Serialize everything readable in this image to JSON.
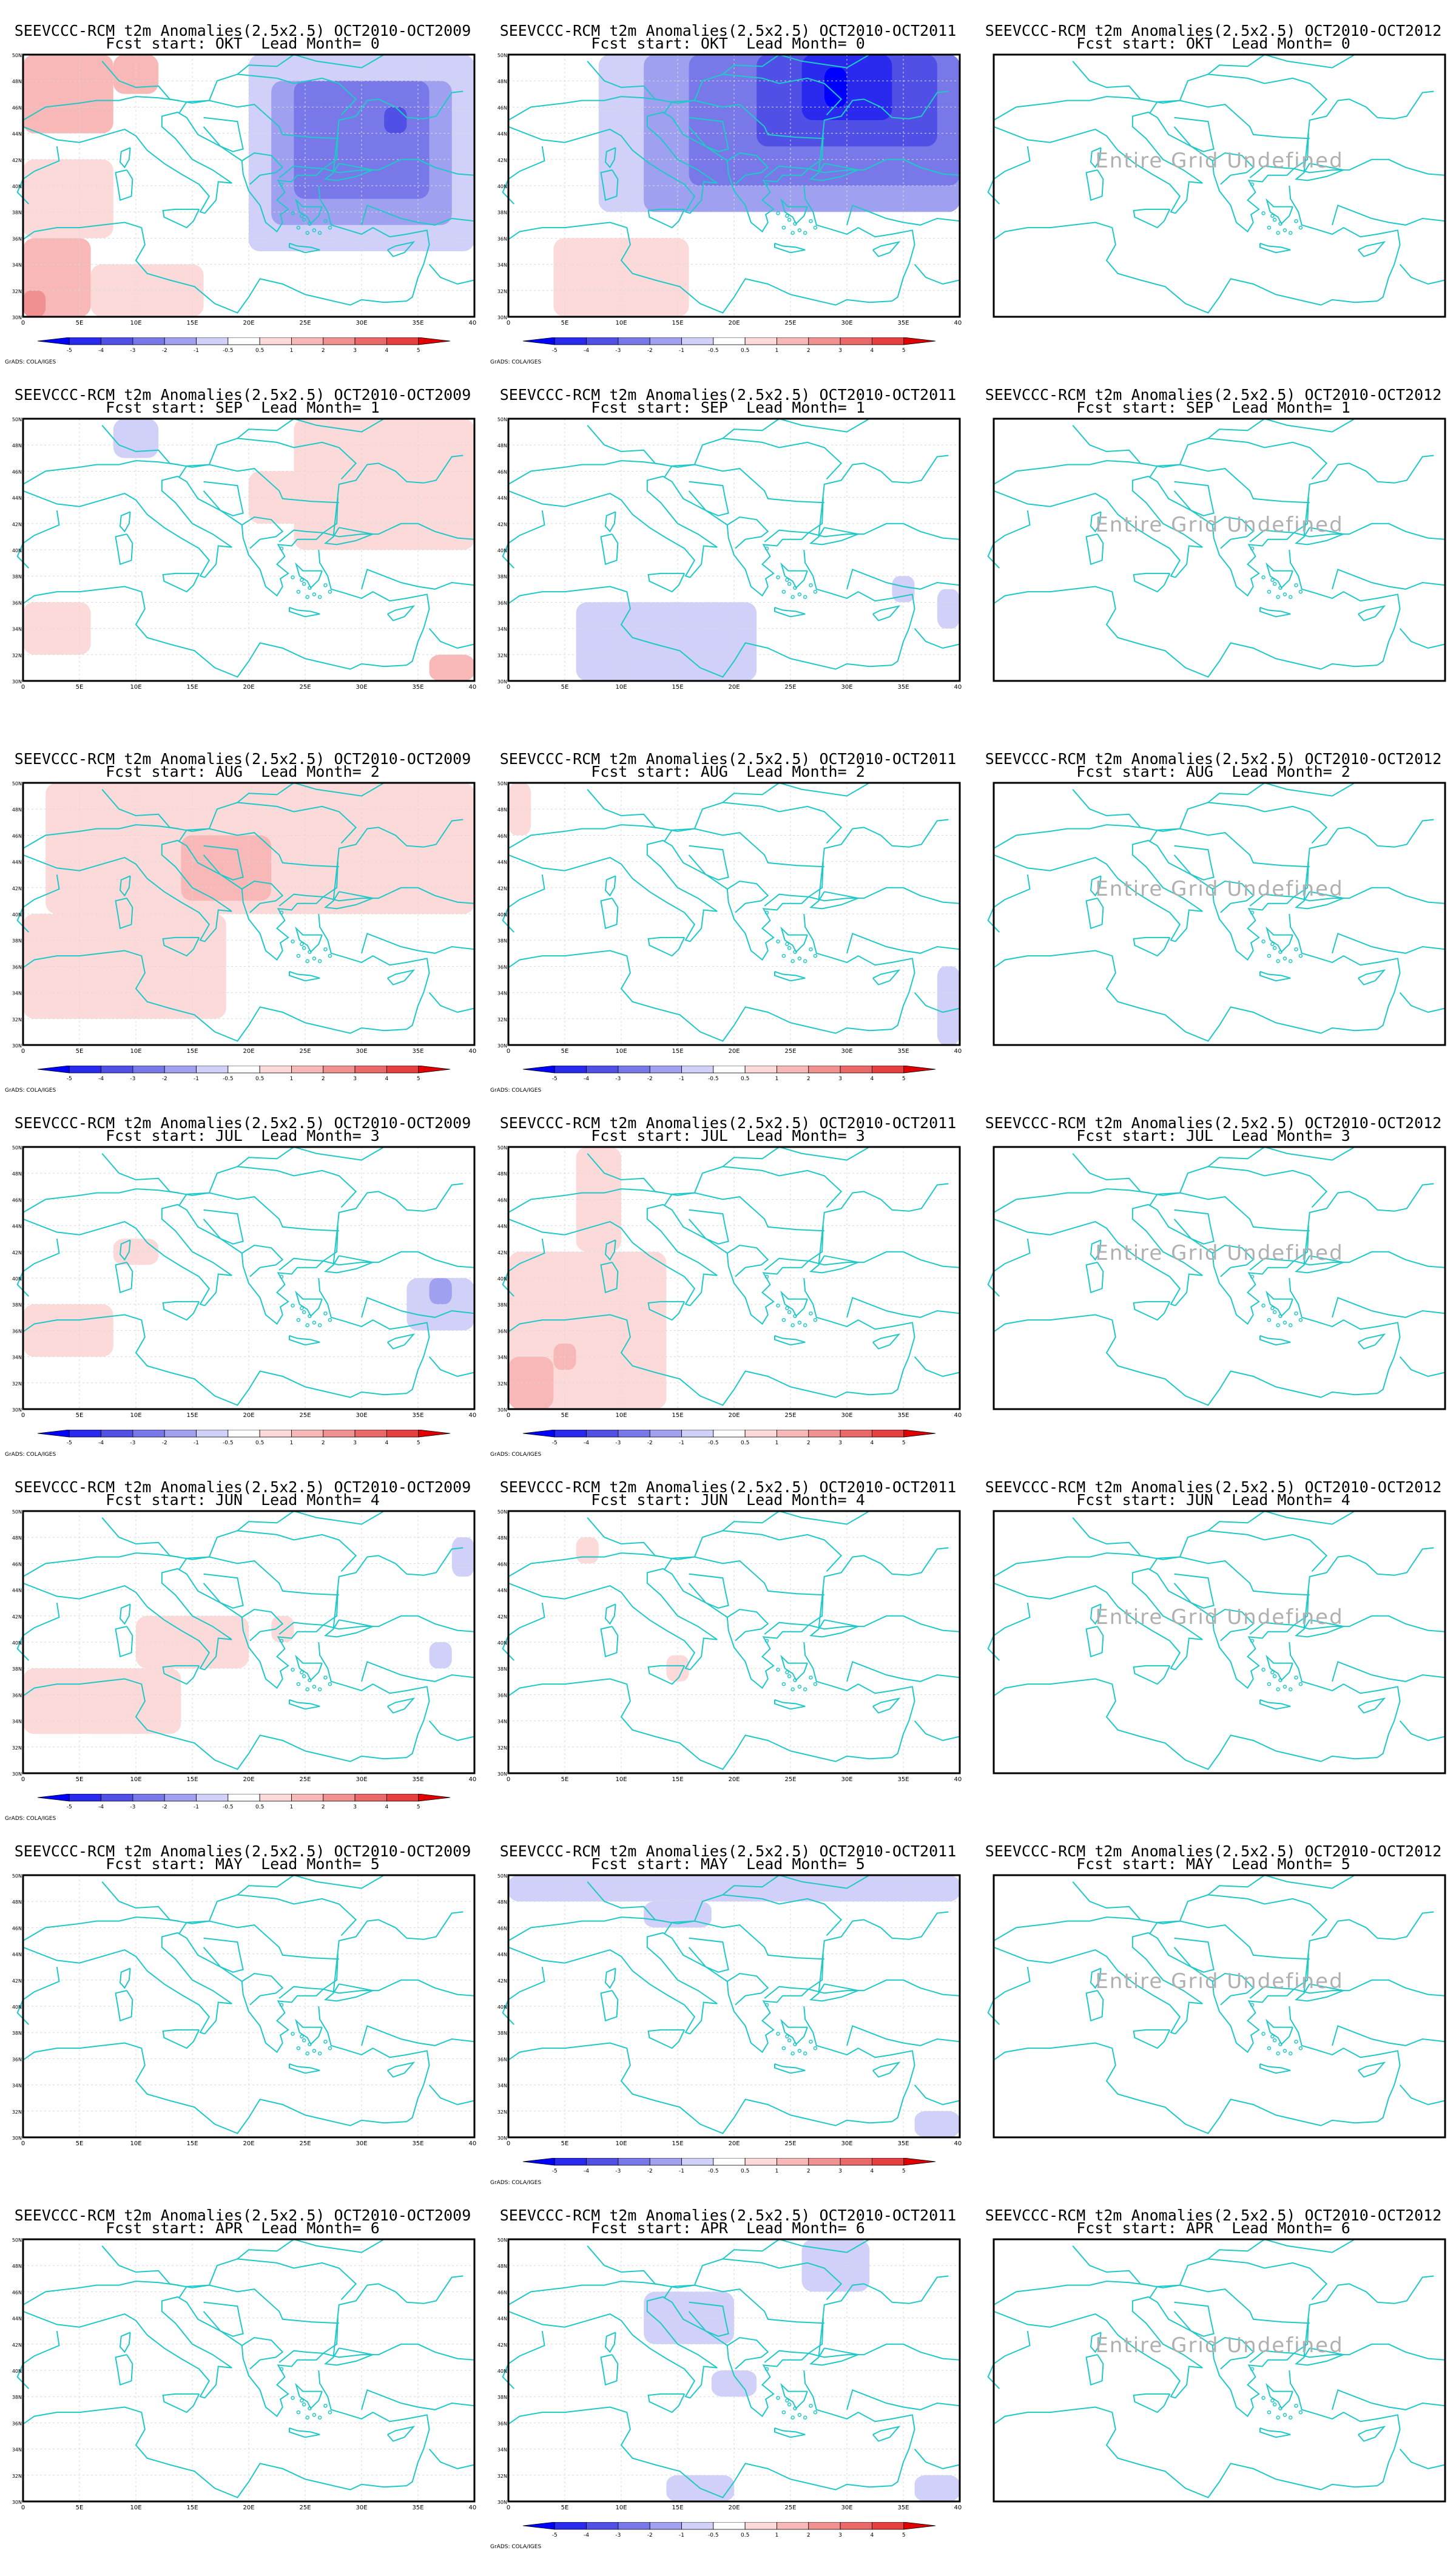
{
  "cell_titles": [
    [
      "SEEVCCC-RCM t2m Anomalies(2.5x2.5) OCT2010-OCT2009",
      "Fcst start: OKT  Lead Month= 0"
    ],
    [
      "SEEVCCC-RCM t2m Anomalies(2.5x2.5) OCT2010-OCT2011",
      "Fcst start: OKT  Lead Month= 0"
    ],
    [
      "SEEVCCC-RCM t2m Anomalies(2.5x2.5) OCT2010-OCT2012",
      "Fcst start: OKT  Lead Month= 0"
    ],
    [
      "SEEVCCC-RCM t2m Anomalies(2.5x2.5) OCT2010-OCT2009",
      "Fcst start: SEP  Lead Month= 1"
    ],
    [
      "SEEVCCC-RCM t2m Anomalies(2.5x2.5) OCT2010-OCT2011",
      "Fcst start: SEP  Lead Month= 1"
    ],
    [
      "SEEVCCC-RCM t2m Anomalies(2.5x2.5) OCT2010-OCT2012",
      "Fcst start: SEP  Lead Month= 1"
    ],
    [
      "SEEVCCC-RCM t2m Anomalies(2.5x2.5) OCT2010-OCT2009",
      "Fcst start: AUG  Lead Month= 2"
    ],
    [
      "SEEVCCC-RCM t2m Anomalies(2.5x2.5) OCT2010-OCT2011",
      "Fcst start: AUG  Lead Month= 2"
    ],
    [
      "SEEVCCC-RCM t2m Anomalies(2.5x2.5) OCT2010-OCT2012",
      "Fcst start: AUG  Lead Month= 2"
    ],
    [
      "SEEVCCC-RCM t2m Anomalies(2.5x2.5) OCT2010-OCT2009",
      "Fcst start: JUL  Lead Month= 3"
    ],
    [
      "SEEVCCC-RCM t2m Anomalies(2.5x2.5) OCT2010-OCT2011",
      "Fcst start: JUL  Lead Month= 3"
    ],
    [
      "SEEVCCC-RCM t2m Anomalies(2.5x2.5) OCT2010-OCT2012",
      "Fcst start: JUL  Lead Month= 3"
    ],
    [
      "SEEVCCC-RCM t2m Anomalies(2.5x2.5) OCT2010-OCT2009",
      "Fcst start: JUN  Lead Month= 4"
    ],
    [
      "SEEVCCC-RCM t2m Anomalies(2.5x2.5) OCT2010-OCT2011",
      "Fcst start: JUN  Lead Month= 4"
    ],
    [
      "SEEVCCC-RCM t2m Anomalies(2.5x2.5) OCT2010-OCT2012",
      "Fcst start: JUN  Lead Month= 4"
    ],
    [
      "SEEVCCC-RCM t2m Anomalies(2.5x2.5) OCT2010-OCT2009",
      "Fcst start: MAY  Lead Month= 5"
    ],
    [
      "SEEVCCC-RCM t2m Anomalies(2.5x2.5) OCT2010-OCT2011",
      "Fcst start: MAY  Lead Month= 5"
    ],
    [
      "SEEVCCC-RCM t2m Anomalies(2.5x2.5) OCT2010-OCT2012",
      "Fcst start: MAY  Lead Month= 5"
    ],
    [
      "SEEVCCC-RCM t2m Anomalies(2.5x2.5) OCT2010-OCT2009",
      "Fcst start: APR  Lead Month= 6"
    ],
    [
      "SEEVCCC-RCM t2m Anomalies(2.5x2.5) OCT2010-OCT2011",
      "Fcst start: APR  Lead Month= 6"
    ],
    [
      "SEEVCCC-RCM t2m Anomalies(2.5x2.5) OCT2010-OCT2012",
      "Fcst start: APR  Lead Month= 6"
    ]
  ],
  "undefined_text": "Entire Grid Undefined",
  "credit_text": "GrADS: COLA/IGES",
  "colors": {
    "coast": "#20c8c8",
    "frame": "#000000",
    "gridline": "#d8d8d8",
    "undefined_text": "#b0b0b0"
  },
  "chart_data": {
    "type": "heatmap",
    "rows": 7,
    "cols": 3,
    "x_ticks": [
      "0",
      "5E",
      "10E",
      "15E",
      "20E",
      "25E",
      "30E",
      "35E",
      "40E"
    ],
    "y_ticks": [
      "30N",
      "32N",
      "34N",
      "36N",
      "38N",
      "40N",
      "42N",
      "44N",
      "46N",
      "48N",
      "50N"
    ],
    "x_range": [
      0,
      40
    ],
    "y_range": [
      30,
      50
    ],
    "colorbar": {
      "labels": [
        "-5",
        "-4",
        "-3",
        "-2",
        "-1",
        "-0.5",
        "0.5",
        "1",
        "2",
        "3",
        "4",
        "5"
      ],
      "colors": [
        "#0000ff",
        "#2a2aee",
        "#5050e6",
        "#7878e8",
        "#a0a0f0",
        "#d0d0f8",
        "#ffffff",
        "#fcdada",
        "#f8b8b8",
        "#f09090",
        "#ea6868",
        "#e64040",
        "#e00000"
      ]
    },
    "panels": [
      {
        "undefined": false,
        "colorbar": true,
        "blobs": [
          {
            "x": 0,
            "y": 44,
            "w": 8,
            "h": 6,
            "v": 1.5
          },
          {
            "x": 8,
            "y": 47,
            "w": 4,
            "h": 3,
            "v": 1.5
          },
          {
            "x": 0,
            "y": 30,
            "w": 6,
            "h": 6,
            "v": 2
          },
          {
            "x": 0,
            "y": 30,
            "w": 2,
            "h": 2,
            "v": 3
          },
          {
            "x": 6,
            "y": 30,
            "w": 10,
            "h": 4,
            "v": 0.7
          },
          {
            "x": 0,
            "y": 36,
            "w": 8,
            "h": 6,
            "v": 0.7
          },
          {
            "x": 20,
            "y": 35,
            "w": 20,
            "h": 15,
            "v": -0.7
          },
          {
            "x": 22,
            "y": 37,
            "w": 16,
            "h": 11,
            "v": -1.5
          },
          {
            "x": 24,
            "y": 39,
            "w": 12,
            "h": 9,
            "v": -2
          },
          {
            "x": 32,
            "y": 44,
            "w": 2,
            "h": 2,
            "v": -3
          }
        ]
      },
      {
        "undefined": false,
        "colorbar": true,
        "blobs": [
          {
            "x": 8,
            "y": 38,
            "w": 32,
            "h": 12,
            "v": -0.7
          },
          {
            "x": 12,
            "y": 38,
            "w": 28,
            "h": 12,
            "v": -1.5
          },
          {
            "x": 16,
            "y": 40,
            "w": 24,
            "h": 10,
            "v": -2
          },
          {
            "x": 22,
            "y": 43,
            "w": 16,
            "h": 7,
            "v": -3
          },
          {
            "x": 26,
            "y": 45,
            "w": 8,
            "h": 5,
            "v": -4
          },
          {
            "x": 28,
            "y": 46,
            "w": 2,
            "h": 3,
            "v": -5
          },
          {
            "x": 4,
            "y": 30,
            "w": 12,
            "h": 6,
            "v": 0.7
          }
        ]
      },
      {
        "undefined": true,
        "colorbar": false,
        "blobs": []
      },
      {
        "undefined": false,
        "colorbar": false,
        "blobs": [
          {
            "x": 24,
            "y": 40,
            "w": 16,
            "h": 10,
            "v": 0.7
          },
          {
            "x": 20,
            "y": 42,
            "w": 6,
            "h": 4,
            "v": 0.7
          },
          {
            "x": 0,
            "y": 32,
            "w": 6,
            "h": 4,
            "v": 0.7
          },
          {
            "x": 8,
            "y": 47,
            "w": 4,
            "h": 3,
            "v": -0.7
          },
          {
            "x": 36,
            "y": 30,
            "w": 4,
            "h": 2,
            "v": 1.5
          }
        ]
      },
      {
        "undefined": false,
        "colorbar": false,
        "blobs": [
          {
            "x": 6,
            "y": 30,
            "w": 16,
            "h": 6,
            "v": -0.7
          },
          {
            "x": 38,
            "y": 34,
            "w": 2,
            "h": 3,
            "v": -0.7
          },
          {
            "x": 34,
            "y": 36,
            "w": 2,
            "h": 2,
            "v": -0.7
          }
        ]
      },
      {
        "undefined": true,
        "colorbar": false,
        "blobs": []
      },
      {
        "undefined": false,
        "colorbar": true,
        "blobs": [
          {
            "x": 2,
            "y": 40,
            "w": 38,
            "h": 10,
            "v": 0.7
          },
          {
            "x": 0,
            "y": 32,
            "w": 18,
            "h": 8,
            "v": 0.7
          },
          {
            "x": 14,
            "y": 41,
            "w": 8,
            "h": 5,
            "v": 1.5
          }
        ]
      },
      {
        "undefined": false,
        "colorbar": true,
        "blobs": [
          {
            "x": 0,
            "y": 46,
            "w": 2,
            "h": 4,
            "v": 0.7
          },
          {
            "x": 38,
            "y": 30,
            "w": 2,
            "h": 6,
            "v": -0.7
          }
        ]
      },
      {
        "undefined": true,
        "colorbar": false,
        "blobs": []
      },
      {
        "undefined": false,
        "colorbar": true,
        "blobs": [
          {
            "x": 0,
            "y": 34,
            "w": 8,
            "h": 4,
            "v": 0.7
          },
          {
            "x": 8,
            "y": 41,
            "w": 4,
            "h": 2,
            "v": 0.7
          },
          {
            "x": 34,
            "y": 36,
            "w": 6,
            "h": 4,
            "v": -0.7
          },
          {
            "x": 36,
            "y": 38,
            "w": 2,
            "h": 2,
            "v": -1.5
          }
        ]
      },
      {
        "undefined": false,
        "colorbar": true,
        "blobs": [
          {
            "x": 0,
            "y": 30,
            "w": 14,
            "h": 12,
            "v": 0.7
          },
          {
            "x": 6,
            "y": 42,
            "w": 4,
            "h": 8,
            "v": 0.7
          },
          {
            "x": 0,
            "y": 30,
            "w": 4,
            "h": 4,
            "v": 1.5
          },
          {
            "x": 4,
            "y": 33,
            "w": 2,
            "h": 2,
            "v": 1.5
          }
        ]
      },
      {
        "undefined": true,
        "colorbar": false,
        "blobs": []
      },
      {
        "undefined": false,
        "colorbar": true,
        "blobs": [
          {
            "x": 0,
            "y": 33,
            "w": 14,
            "h": 5,
            "v": 0.7
          },
          {
            "x": 10,
            "y": 38,
            "w": 10,
            "h": 4,
            "v": 0.7
          },
          {
            "x": 22,
            "y": 40,
            "w": 2,
            "h": 2,
            "v": 0.7
          },
          {
            "x": 38,
            "y": 45,
            "w": 2,
            "h": 3,
            "v": -0.7
          },
          {
            "x": 36,
            "y": 38,
            "w": 2,
            "h": 2,
            "v": -0.7
          }
        ]
      },
      {
        "undefined": false,
        "colorbar": false,
        "blobs": [
          {
            "x": 14,
            "y": 37,
            "w": 2,
            "h": 2,
            "v": 0.7
          },
          {
            "x": 6,
            "y": 46,
            "w": 2,
            "h": 2,
            "v": 0.7
          }
        ]
      },
      {
        "undefined": true,
        "colorbar": false,
        "blobs": []
      },
      {
        "undefined": false,
        "colorbar": false,
        "blobs": []
      },
      {
        "undefined": false,
        "colorbar": true,
        "blobs": [
          {
            "x": 0,
            "y": 48,
            "w": 40,
            "h": 2,
            "v": -0.7
          },
          {
            "x": 12,
            "y": 46,
            "w": 6,
            "h": 2,
            "v": -0.7
          },
          {
            "x": 36,
            "y": 30,
            "w": 4,
            "h": 2,
            "v": -0.7
          }
        ]
      },
      {
        "undefined": true,
        "colorbar": false,
        "blobs": []
      },
      {
        "undefined": false,
        "colorbar": false,
        "blobs": []
      },
      {
        "undefined": false,
        "colorbar": true,
        "blobs": [
          {
            "x": 12,
            "y": 42,
            "w": 8,
            "h": 4,
            "v": -0.7
          },
          {
            "x": 26,
            "y": 46,
            "w": 6,
            "h": 4,
            "v": -0.7
          },
          {
            "x": 18,
            "y": 38,
            "w": 4,
            "h": 2,
            "v": -0.7
          },
          {
            "x": 14,
            "y": 30,
            "w": 6,
            "h": 2,
            "v": -0.7
          },
          {
            "x": 36,
            "y": 30,
            "w": 4,
            "h": 2,
            "v": -0.7
          }
        ]
      },
      {
        "undefined": true,
        "colorbar": false,
        "blobs": []
      }
    ]
  }
}
